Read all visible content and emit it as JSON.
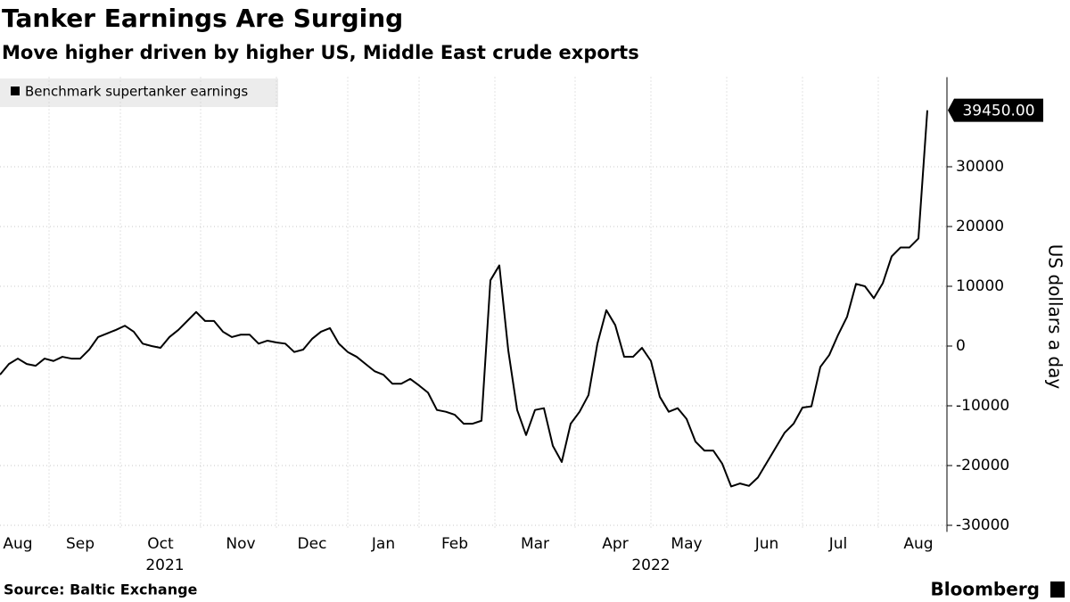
{
  "chart_data": {
    "type": "line",
    "title": "Tanker Earnings Are Surging",
    "subtitle": "Move higher driven by higher US, Middle East crude exports",
    "y_label": "US dollars a day",
    "source": "Source: Baltic Exchange",
    "brand": "Bloomberg",
    "categories": [
      null,
      null,
      "Aug",
      null,
      null,
      null,
      null,
      null,
      null,
      "Sep",
      null,
      null,
      null,
      null,
      null,
      null,
      null,
      null,
      "Oct",
      null,
      null,
      null,
      null,
      null,
      null,
      null,
      null,
      "Nov",
      null,
      null,
      null,
      null,
      null,
      null,
      null,
      "Dec",
      null,
      null,
      null,
      null,
      null,
      null,
      null,
      "Jan",
      null,
      null,
      null,
      null,
      null,
      null,
      null,
      "Feb",
      null,
      null,
      null,
      null,
      null,
      null,
      null,
      null,
      "Mar",
      null,
      null,
      null,
      null,
      null,
      null,
      null,
      null,
      "Apr",
      null,
      null,
      null,
      null,
      null,
      null,
      null,
      "May",
      null,
      null,
      null,
      null,
      null,
      null,
      null,
      null,
      "Jun",
      null,
      null,
      null,
      null,
      null,
      null,
      null,
      "Jul",
      null,
      null,
      null,
      null,
      null,
      null,
      null,
      null,
      "Aug",
      null
    ],
    "x_groups": [
      {
        "label": "2021",
        "from": 0,
        "to": 42
      },
      {
        "label": "2022",
        "from": 43,
        "to": 104
      }
    ],
    "series": [
      {
        "name": "Benchmark supertanker earnings",
        "color": "#000000",
        "values": [
          -4800,
          -3000,
          -2100,
          -3000,
          -3300,
          -2100,
          -2500,
          -1800,
          -2100,
          -2100,
          -600,
          1500,
          2100,
          2700,
          3400,
          2400,
          400,
          0,
          -300,
          1500,
          2700,
          4200,
          5700,
          4200,
          4200,
          2400,
          1500,
          1900,
          1900,
          400,
          900,
          600,
          400,
          -1000,
          -600,
          1200,
          2400,
          3000,
          400,
          -1000,
          -1800,
          -3000,
          -4200,
          -4800,
          -6300,
          -6300,
          -5500,
          -6600,
          -7800,
          -10700,
          -11000,
          -11500,
          -13000,
          -13000,
          -12500,
          11000,
          13500,
          -700,
          -10700,
          -14900,
          -10700,
          -10400,
          -16700,
          -19400,
          -13000,
          -11000,
          -8200,
          400,
          6000,
          3500,
          -1800,
          -1800,
          -300,
          -2500,
          -8500,
          -11000,
          -10400,
          -12200,
          -16000,
          -17500,
          -17500,
          -19700,
          -23500,
          -23000,
          -23400,
          -22000,
          -19500,
          -17000,
          -14500,
          -13000,
          -10300,
          -10100,
          -3500,
          -1500,
          1900,
          4900,
          10400,
          10000,
          8000,
          10500,
          15000,
          16500,
          16500,
          18000,
          39450
        ],
        "value_labels": [
          null,
          null,
          null,
          null,
          null,
          null,
          null,
          null,
          null,
          null,
          null,
          null,
          null,
          null,
          null,
          null,
          null,
          null,
          null,
          null,
          null,
          null,
          null,
          null,
          null,
          null,
          null,
          null,
          null,
          null,
          null,
          null,
          null,
          null,
          null,
          null,
          null,
          null,
          null,
          null,
          null,
          null,
          null,
          null,
          null,
          null,
          null,
          null,
          null,
          null,
          null,
          null,
          null,
          null,
          null,
          null,
          null,
          null,
          null,
          null,
          null,
          null,
          null,
          null,
          null,
          null,
          null,
          null,
          null,
          null,
          null,
          null,
          null,
          null,
          null,
          null,
          null,
          null,
          null,
          null,
          null,
          null,
          null,
          null,
          null,
          null,
          null,
          null,
          null,
          null,
          null,
          null,
          null,
          null,
          null,
          null,
          null,
          null,
          null,
          null,
          null,
          null,
          null,
          null,
          "39450.00"
        ]
      }
    ],
    "ylim": [
      -30500,
      45000
    ],
    "yticks": [
      -30000,
      -20000,
      -10000,
      0,
      10000,
      20000,
      30000
    ],
    "grid": true
  }
}
